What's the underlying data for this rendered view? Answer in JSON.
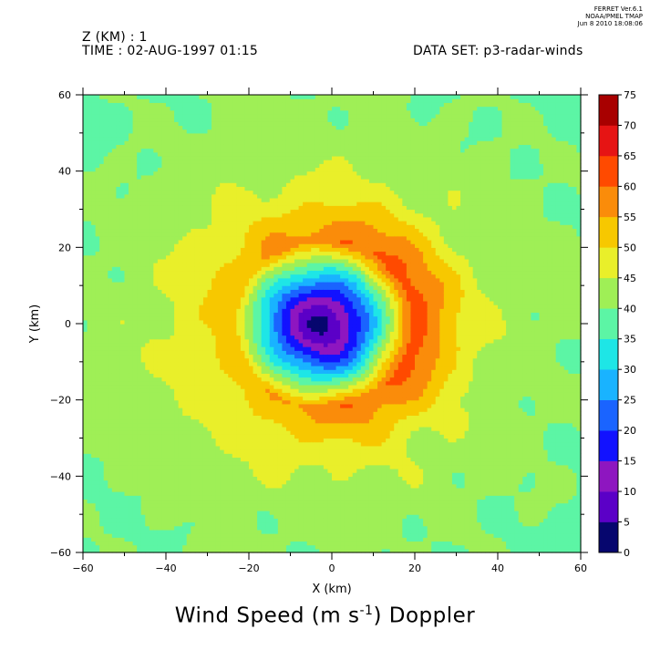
{
  "header": {
    "z_label": "Z (KM) : 1",
    "time_label": "TIME : 02-AUG-1997 01:15",
    "dataset_label": "DATA SET: p3-radar-winds",
    "stamp_line1": "FERRET  Ver.6.1",
    "stamp_line2": "NOAA/PMEL TMAP",
    "stamp_line3": "Jun  8 2010 18:08:06"
  },
  "title": {
    "main": "Wind Speed (m s",
    "exponent": "-1",
    "suffix": ") Doppler"
  },
  "chart_data": {
    "type": "heatmap",
    "subtype": "filled-contour",
    "xlabel": "X (km)",
    "ylabel": "Y (km)",
    "xlim": [
      -60,
      60
    ],
    "ylim": [
      -60,
      60
    ],
    "xticks": [
      -60,
      -40,
      -20,
      0,
      20,
      40,
      60
    ],
    "yticks": [
      -60,
      -40,
      -20,
      0,
      20,
      40,
      60
    ],
    "colorbar": {
      "levels": [
        0,
        5,
        10,
        15,
        20,
        25,
        30,
        35,
        40,
        45,
        50,
        55,
        60,
        65,
        70,
        75
      ],
      "colors": [
        "#06066e",
        "#5b00c7",
        "#8e16c0",
        "#1212ff",
        "#1a64ff",
        "#19b3ff",
        "#1ee6e6",
        "#5cf5a5",
        "#9fef56",
        "#e9ef2a",
        "#f7c800",
        "#fa8c0a",
        "#ff4a00",
        "#e61414",
        "#a80000"
      ]
    },
    "field": {
      "center_x": -2,
      "center_y": 0,
      "eye_speed": 3,
      "max_speed": 63,
      "max_speed_radius_km": 22,
      "max_speed_side": "east",
      "background_speed": 38
    }
  }
}
